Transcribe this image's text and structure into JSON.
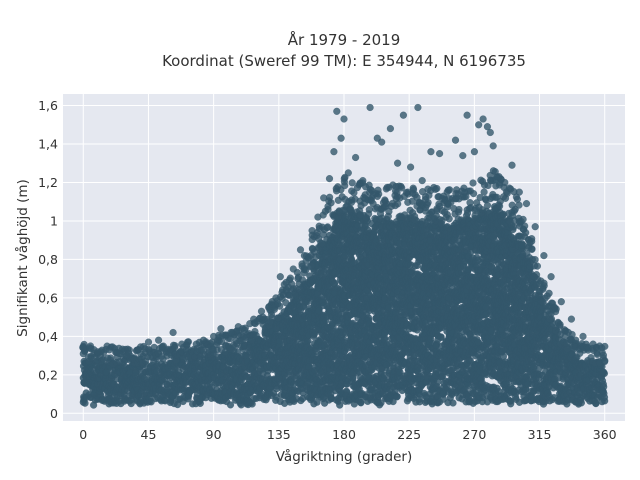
{
  "chart_data": {
    "type": "scatter",
    "title": "År 1979 - 2019",
    "subtitle": "Koordinat (Sweref 99 TM): E 354944, N 6196735",
    "xlabel": "Vågriktning (grader)",
    "ylabel": "Signifikant våghöjd (m)",
    "xlim": [
      -14,
      374
    ],
    "ylim": [
      -0.04,
      1.66
    ],
    "x_ticks": [
      0,
      45,
      90,
      135,
      180,
      225,
      270,
      315,
      360
    ],
    "x_tick_labels": [
      "0",
      "45",
      "90",
      "135",
      "180",
      "225",
      "270",
      "315",
      "360"
    ],
    "y_ticks": [
      0,
      0.2,
      0.4,
      0.6,
      0.8,
      1.0,
      1.2,
      1.4,
      1.6
    ],
    "y_tick_labels": [
      "0",
      "0,2",
      "0,4",
      "0,6",
      "0,8",
      "1",
      "1,2",
      "1,4",
      "1,6"
    ],
    "grid": true,
    "colors": {
      "point": "#34576b",
      "plot_background": "#e5e8f0",
      "grid": "#ffffff"
    },
    "envelope": {
      "direction_deg": [
        0,
        15,
        30,
        45,
        60,
        75,
        90,
        105,
        120,
        135,
        145,
        155,
        160,
        165,
        170,
        175,
        180,
        190,
        200,
        210,
        220,
        230,
        240,
        250,
        260,
        270,
        280,
        285,
        290,
        295,
        300,
        305,
        310,
        315,
        320,
        325,
        330,
        340,
        350,
        360
      ],
      "dense_max_height_m": [
        0.27,
        0.26,
        0.25,
        0.26,
        0.27,
        0.28,
        0.3,
        0.33,
        0.4,
        0.5,
        0.6,
        0.7,
        0.8,
        0.88,
        0.95,
        1.0,
        1.05,
        1.03,
        1.0,
        1.0,
        1.02,
        1.0,
        1.0,
        0.98,
        1.0,
        1.02,
        1.06,
        1.08,
        1.05,
        1.0,
        0.95,
        0.85,
        0.75,
        0.62,
        0.52,
        0.45,
        0.36,
        0.3,
        0.26,
        0.26
      ],
      "min_height_m": 0.05
    },
    "outliers": [
      {
        "x": 0,
        "y": 0.34
      },
      {
        "x": 5,
        "y": 0.35
      },
      {
        "x": 18,
        "y": 0.33
      },
      {
        "x": 30,
        "y": 0.3
      },
      {
        "x": 45,
        "y": 0.37
      },
      {
        "x": 52,
        "y": 0.38
      },
      {
        "x": 62,
        "y": 0.42
      },
      {
        "x": 72,
        "y": 0.37
      },
      {
        "x": 78,
        "y": 0.36
      },
      {
        "x": 90,
        "y": 0.4
      },
      {
        "x": 95,
        "y": 0.44
      },
      {
        "x": 102,
        "y": 0.42
      },
      {
        "x": 110,
        "y": 0.44
      },
      {
        "x": 118,
        "y": 0.47
      },
      {
        "x": 128,
        "y": 0.55
      },
      {
        "x": 133,
        "y": 0.6
      },
      {
        "x": 136,
        "y": 0.71
      },
      {
        "x": 145,
        "y": 0.75
      },
      {
        "x": 150,
        "y": 0.85
      },
      {
        "x": 158,
        "y": 0.95
      },
      {
        "x": 162,
        "y": 1.02
      },
      {
        "x": 166,
        "y": 1.12
      },
      {
        "x": 170,
        "y": 1.22
      },
      {
        "x": 173,
        "y": 1.36
      },
      {
        "x": 175,
        "y": 1.57
      },
      {
        "x": 180,
        "y": 1.53
      },
      {
        "x": 178,
        "y": 1.43
      },
      {
        "x": 183,
        "y": 1.25
      },
      {
        "x": 188,
        "y": 1.33
      },
      {
        "x": 193,
        "y": 1.21
      },
      {
        "x": 198,
        "y": 1.59
      },
      {
        "x": 203,
        "y": 1.43
      },
      {
        "x": 206,
        "y": 1.41
      },
      {
        "x": 212,
        "y": 1.48
      },
      {
        "x": 217,
        "y": 1.3
      },
      {
        "x": 221,
        "y": 1.55
      },
      {
        "x": 226,
        "y": 1.28
      },
      {
        "x": 231,
        "y": 1.59
      },
      {
        "x": 234,
        "y": 1.21
      },
      {
        "x": 240,
        "y": 1.36
      },
      {
        "x": 246,
        "y": 1.35
      },
      {
        "x": 252,
        "y": 1.16
      },
      {
        "x": 257,
        "y": 1.42
      },
      {
        "x": 262,
        "y": 1.34
      },
      {
        "x": 265,
        "y": 1.55
      },
      {
        "x": 270,
        "y": 1.36
      },
      {
        "x": 273,
        "y": 1.5
      },
      {
        "x": 276,
        "y": 1.53
      },
      {
        "x": 279,
        "y": 1.49
      },
      {
        "x": 281,
        "y": 1.46
      },
      {
        "x": 283,
        "y": 1.39
      },
      {
        "x": 287,
        "y": 1.23
      },
      {
        "x": 291,
        "y": 1.2
      },
      {
        "x": 296,
        "y": 1.29
      },
      {
        "x": 301,
        "y": 1.15
      },
      {
        "x": 306,
        "y": 1.09
      },
      {
        "x": 312,
        "y": 0.97
      },
      {
        "x": 318,
        "y": 0.82
      },
      {
        "x": 323,
        "y": 0.71
      },
      {
        "x": 330,
        "y": 0.58
      },
      {
        "x": 337,
        "y": 0.49
      },
      {
        "x": 345,
        "y": 0.4
      },
      {
        "x": 352,
        "y": 0.36
      },
      {
        "x": 358,
        "y": 0.34
      },
      {
        "x": 10,
        "y": 0.32
      },
      {
        "x": 25,
        "y": 0.31
      },
      {
        "x": 38,
        "y": 0.33
      },
      {
        "x": 68,
        "y": 0.36
      },
      {
        "x": 83,
        "y": 0.38
      },
      {
        "x": 107,
        "y": 0.45
      },
      {
        "x": 124,
        "y": 0.5
      },
      {
        "x": 140,
        "y": 0.68
      }
    ]
  }
}
